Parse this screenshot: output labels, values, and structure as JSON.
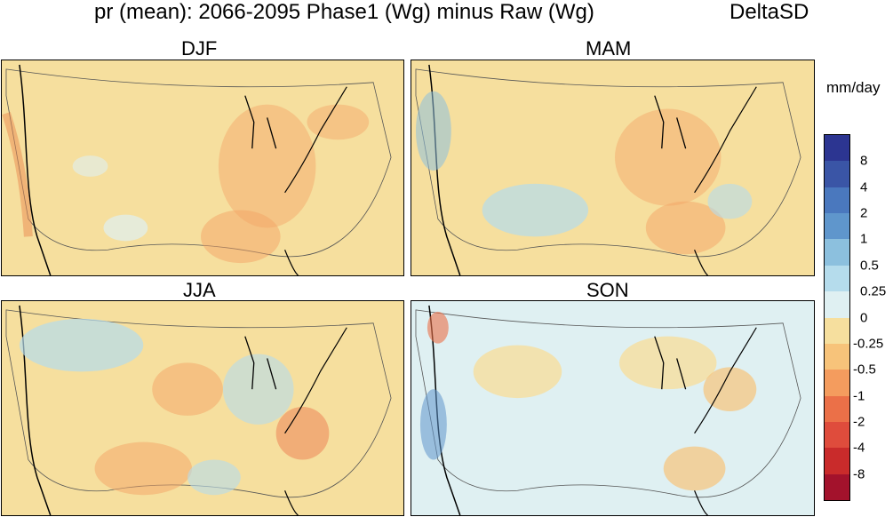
{
  "header": {
    "title": "pr (mean): 2066-2095 Phase1 (Wg) minus Raw (Wg)",
    "badge": "DeltaSD"
  },
  "panels": [
    {
      "label": "DJF"
    },
    {
      "label": "MAM"
    },
    {
      "label": "JJA"
    },
    {
      "label": "SON"
    }
  ],
  "colorbar": {
    "units": "mm/day",
    "ticks": [
      "8",
      "4",
      "2",
      "1",
      "0.5",
      "0.25",
      "0",
      "-0.25",
      "-0.5",
      "-1",
      "-2",
      "-4",
      "-8"
    ],
    "colors": [
      "#2c3591",
      "#3a55a6",
      "#4a78be",
      "#5f96cc",
      "#8cc0de",
      "#b5dcec",
      "#dff0f2",
      "#f6df9e",
      "#f7c37a",
      "#f49c5e",
      "#eb7048",
      "#df4c3c",
      "#c92b2b",
      "#a3122c"
    ]
  }
}
